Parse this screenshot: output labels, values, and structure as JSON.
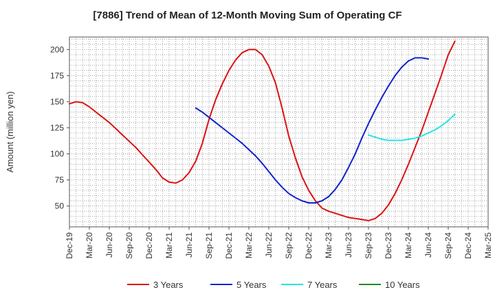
{
  "chart_data": {
    "type": "line",
    "title": "[7886]  Trend of Mean of 12-Month Moving Sum of Operating CF",
    "xlabel": "",
    "ylabel": "Amount (million yen)",
    "ylim": [
      30,
      212
    ],
    "yticks": [
      50,
      75,
      100,
      125,
      150,
      175,
      200
    ],
    "x_range": [
      0,
      63
    ],
    "x_ticks": [
      {
        "label": "Dec-19",
        "x": 0
      },
      {
        "label": "Mar-20",
        "x": 3
      },
      {
        "label": "Jun-20",
        "x": 6
      },
      {
        "label": "Sep-20",
        "x": 9
      },
      {
        "label": "Dec-20",
        "x": 12
      },
      {
        "label": "Mar-21",
        "x": 15
      },
      {
        "label": "Jun-21",
        "x": 18
      },
      {
        "label": "Sep-21",
        "x": 21
      },
      {
        "label": "Dec-21",
        "x": 24
      },
      {
        "label": "Mar-22",
        "x": 27
      },
      {
        "label": "Jun-22",
        "x": 30
      },
      {
        "label": "Sep-22",
        "x": 33
      },
      {
        "label": "Dec-22",
        "x": 36
      },
      {
        "label": "Mar-23",
        "x": 39
      },
      {
        "label": "Jun-23",
        "x": 42
      },
      {
        "label": "Sep-23",
        "x": 45
      },
      {
        "label": "Dec-23",
        "x": 48
      },
      {
        "label": "Mar-24",
        "x": 51
      },
      {
        "label": "Jun-24",
        "x": 54
      },
      {
        "label": "Sep-24",
        "x": 57
      },
      {
        "label": "Dec-24",
        "x": 60
      },
      {
        "label": "Mar-25",
        "x": 63
      }
    ],
    "grid": true,
    "legend_position": "bottom",
    "series": [
      {
        "name": "3 Years",
        "color": "#dd1111",
        "start_x": 0,
        "values": [
          148,
          150,
          149,
          145,
          140,
          135,
          130,
          124,
          118,
          112,
          106,
          99,
          92,
          85,
          77,
          73,
          72,
          75,
          82,
          93,
          110,
          133,
          152,
          167,
          180,
          190,
          197,
          200,
          200,
          195,
          184,
          168,
          144,
          117,
          96,
          78,
          65,
          55,
          48,
          45,
          43,
          41,
          39,
          38,
          37,
          36,
          38,
          43,
          51,
          62,
          75,
          90,
          106,
          122,
          140,
          158,
          176,
          195,
          208
        ]
      },
      {
        "name": "5 Years",
        "color": "#1122cc",
        "start_x": 19,
        "values": [
          144,
          140,
          135,
          130,
          125,
          120,
          115,
          110,
          104,
          98,
          91,
          83,
          75,
          68,
          62,
          58,
          55,
          53,
          53,
          55,
          59,
          66,
          75,
          87,
          100,
          115,
          129,
          142,
          154,
          165,
          175,
          183,
          189,
          192,
          192,
          191
        ]
      },
      {
        "name": "7 Years",
        "color": "#22e5e5",
        "start_x": 45,
        "values": [
          118,
          116,
          114,
          113,
          113,
          113,
          114,
          115,
          117,
          120,
          123,
          127,
          132,
          138
        ]
      },
      {
        "name": "10 Years",
        "color": "#228822",
        "start_x": 0,
        "values": []
      }
    ]
  }
}
